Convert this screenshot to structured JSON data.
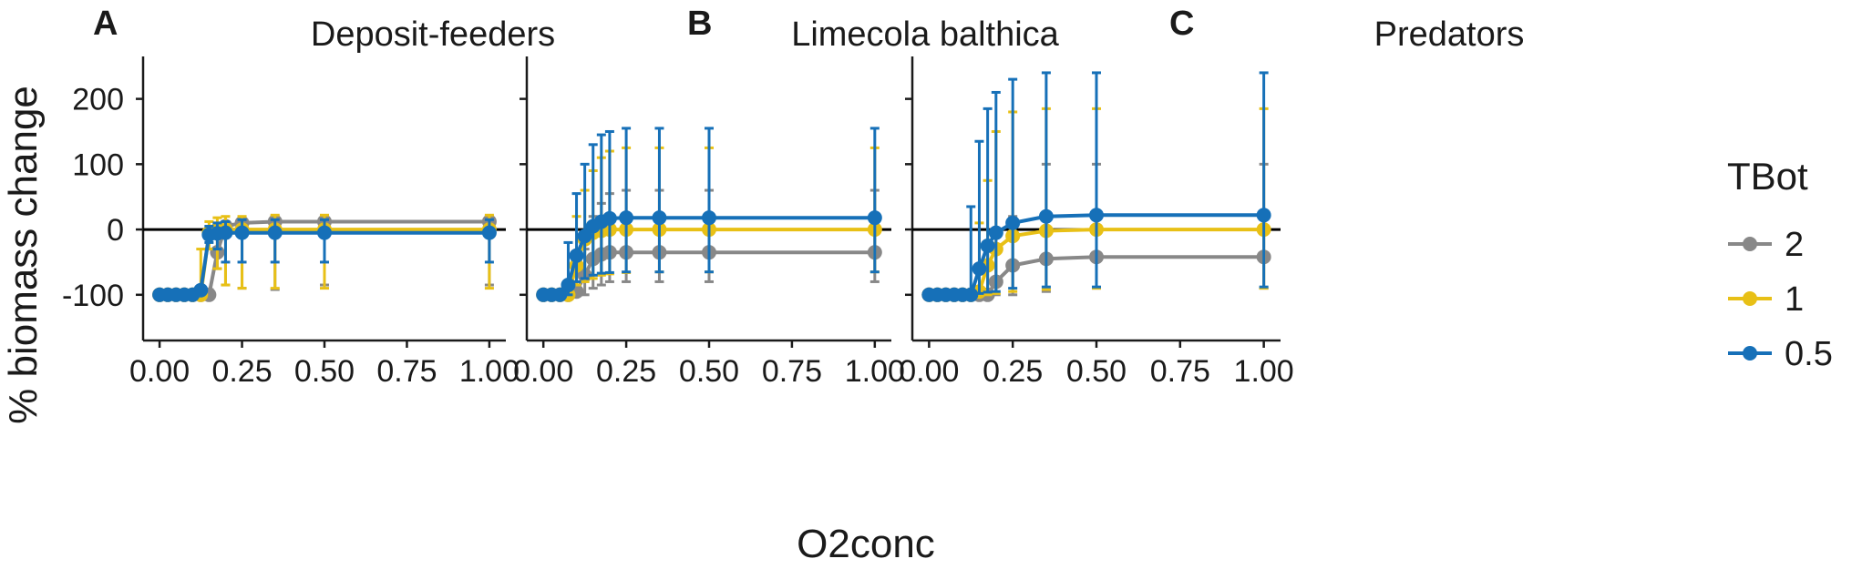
{
  "chart_data": {
    "type": "line",
    "xlabel": "O2conc",
    "ylabel": "% biomass change",
    "xlim": [
      -0.05,
      1.05
    ],
    "ylim": [
      -170,
      265
    ],
    "x_ticks": [
      "0.00",
      "0.25",
      "0.50",
      "0.75",
      "1.00"
    ],
    "y_ticks": [
      "-100",
      "0",
      "100",
      "200"
    ],
    "legend": {
      "title": "TBot",
      "position": "right",
      "entries": [
        {
          "label": "2",
          "color": "#888888"
        },
        {
          "label": "1",
          "color": "#e8c016"
        },
        {
          "label": "0.5",
          "color": "#1670b8"
        }
      ]
    },
    "x": [
      0,
      0.025,
      0.05,
      0.075,
      0.1,
      0.125,
      0.15,
      0.175,
      0.2,
      0.25,
      0.35,
      0.5,
      1.0
    ],
    "panels": [
      {
        "letter": "A",
        "title": "Deposit-feeders",
        "series": [
          {
            "name": "2",
            "color": "#888888",
            "values": [
              -100,
              -100,
              -100,
              -100,
              -100,
              -100,
              -100,
              -35,
              5,
              10,
              12,
              12,
              12
            ],
            "upper": [
              -100,
              -100,
              -100,
              -100,
              -100,
              -100,
              -92,
              -10,
              12,
              18,
              20,
              20,
              20
            ],
            "lower": [
              -100,
              -100,
              -100,
              -100,
              -100,
              -100,
              -100,
              -60,
              -85,
              -90,
              -92,
              -85,
              -85
            ]
          },
          {
            "name": "1",
            "color": "#e8c016",
            "values": [
              -100,
              -100,
              -100,
              -100,
              -100,
              -100,
              -5,
              0,
              0,
              0,
              0,
              0,
              0
            ],
            "upper": [
              -100,
              -100,
              -100,
              -100,
              -100,
              -30,
              12,
              18,
              20,
              20,
              22,
              22,
              22
            ],
            "lower": [
              -100,
              -100,
              -100,
              -100,
              -100,
              -100,
              -30,
              -60,
              -85,
              -90,
              -90,
              -90,
              -90
            ]
          },
          {
            "name": "0.5",
            "color": "#1670b8",
            "values": [
              -100,
              -100,
              -100,
              -100,
              -100,
              -93,
              -8,
              -6,
              -5,
              -5,
              -5,
              -5,
              -5
            ],
            "upper": [
              -100,
              -100,
              -100,
              -100,
              -100,
              -90,
              5,
              10,
              12,
              15,
              15,
              15,
              15
            ],
            "lower": [
              -100,
              -100,
              -100,
              -100,
              -100,
              -98,
              -20,
              -30,
              -50,
              -50,
              -50,
              -50,
              -50
            ]
          }
        ]
      },
      {
        "letter": "B",
        "title": "Limecola balthica",
        "series": [
          {
            "name": "2",
            "color": "#888888",
            "values": [
              -100,
              -100,
              -100,
              -100,
              -95,
              -70,
              -45,
              -38,
              -35,
              -35,
              -35,
              -35,
              -35
            ],
            "upper": [
              -100,
              -100,
              -100,
              -100,
              -90,
              -30,
              20,
              40,
              55,
              60,
              60,
              60,
              60
            ],
            "lower": [
              -100,
              -100,
              -100,
              -100,
              -100,
              -100,
              -90,
              -85,
              -80,
              -80,
              -80,
              -80,
              -80
            ]
          },
          {
            "name": "1",
            "color": "#e8c016",
            "values": [
              -100,
              -100,
              -100,
              -100,
              -55,
              -15,
              -5,
              -2,
              0,
              0,
              0,
              0,
              0
            ],
            "upper": [
              -100,
              -100,
              -100,
              -100,
              20,
              60,
              90,
              110,
              120,
              125,
              125,
              125,
              125
            ],
            "lower": [
              -100,
              -100,
              -100,
              -100,
              -85,
              -80,
              -75,
              -70,
              -68,
              -66,
              -65,
              -65,
              -65
            ]
          },
          {
            "name": "0.5",
            "color": "#1670b8",
            "values": [
              -100,
              -100,
              -100,
              -85,
              -40,
              -10,
              5,
              12,
              17,
              18,
              18,
              18,
              18
            ],
            "upper": [
              -100,
              -100,
              -100,
              -20,
              55,
              100,
              130,
              145,
              150,
              155,
              155,
              155,
              155
            ],
            "lower": [
              -100,
              -100,
              -100,
              -100,
              -80,
              -75,
              -70,
              -67,
              -66,
              -65,
              -65,
              -65,
              -65
            ]
          }
        ]
      },
      {
        "letter": "C",
        "title": "Predators",
        "series": [
          {
            "name": "2",
            "color": "#888888",
            "values": [
              -100,
              -100,
              -100,
              -100,
              -100,
              -100,
              -100,
              -100,
              -80,
              -55,
              -45,
              -42,
              -42
            ],
            "upper": [
              -100,
              -100,
              -100,
              -100,
              -100,
              -100,
              -100,
              -100,
              -30,
              20,
              100,
              100,
              100
            ],
            "lower": [
              -100,
              -100,
              -100,
              -100,
              -100,
              -100,
              -100,
              -100,
              -100,
              -100,
              -95,
              -90,
              -90
            ]
          },
          {
            "name": "1",
            "color": "#e8c016",
            "values": [
              -100,
              -100,
              -100,
              -100,
              -100,
              -100,
              -95,
              -55,
              -30,
              -10,
              -2,
              0,
              0
            ],
            "upper": [
              -100,
              -100,
              -100,
              -100,
              -100,
              -100,
              10,
              75,
              150,
              180,
              185,
              185,
              185
            ],
            "lower": [
              -100,
              -100,
              -100,
              -100,
              -100,
              -100,
              -100,
              -100,
              -98,
              -95,
              -92,
              -90,
              -90
            ]
          },
          {
            "name": "0.5",
            "color": "#1670b8",
            "values": [
              -100,
              -100,
              -100,
              -100,
              -100,
              -100,
              -60,
              -25,
              -5,
              10,
              20,
              22,
              22
            ],
            "upper": [
              -100,
              -100,
              -100,
              -100,
              -100,
              35,
              135,
              185,
              210,
              230,
              240,
              240,
              240
            ],
            "lower": [
              -100,
              -100,
              -100,
              -100,
              -100,
              -100,
              -98,
              -96,
              -95,
              -90,
              -88,
              -88,
              -88
            ]
          }
        ]
      }
    ]
  }
}
